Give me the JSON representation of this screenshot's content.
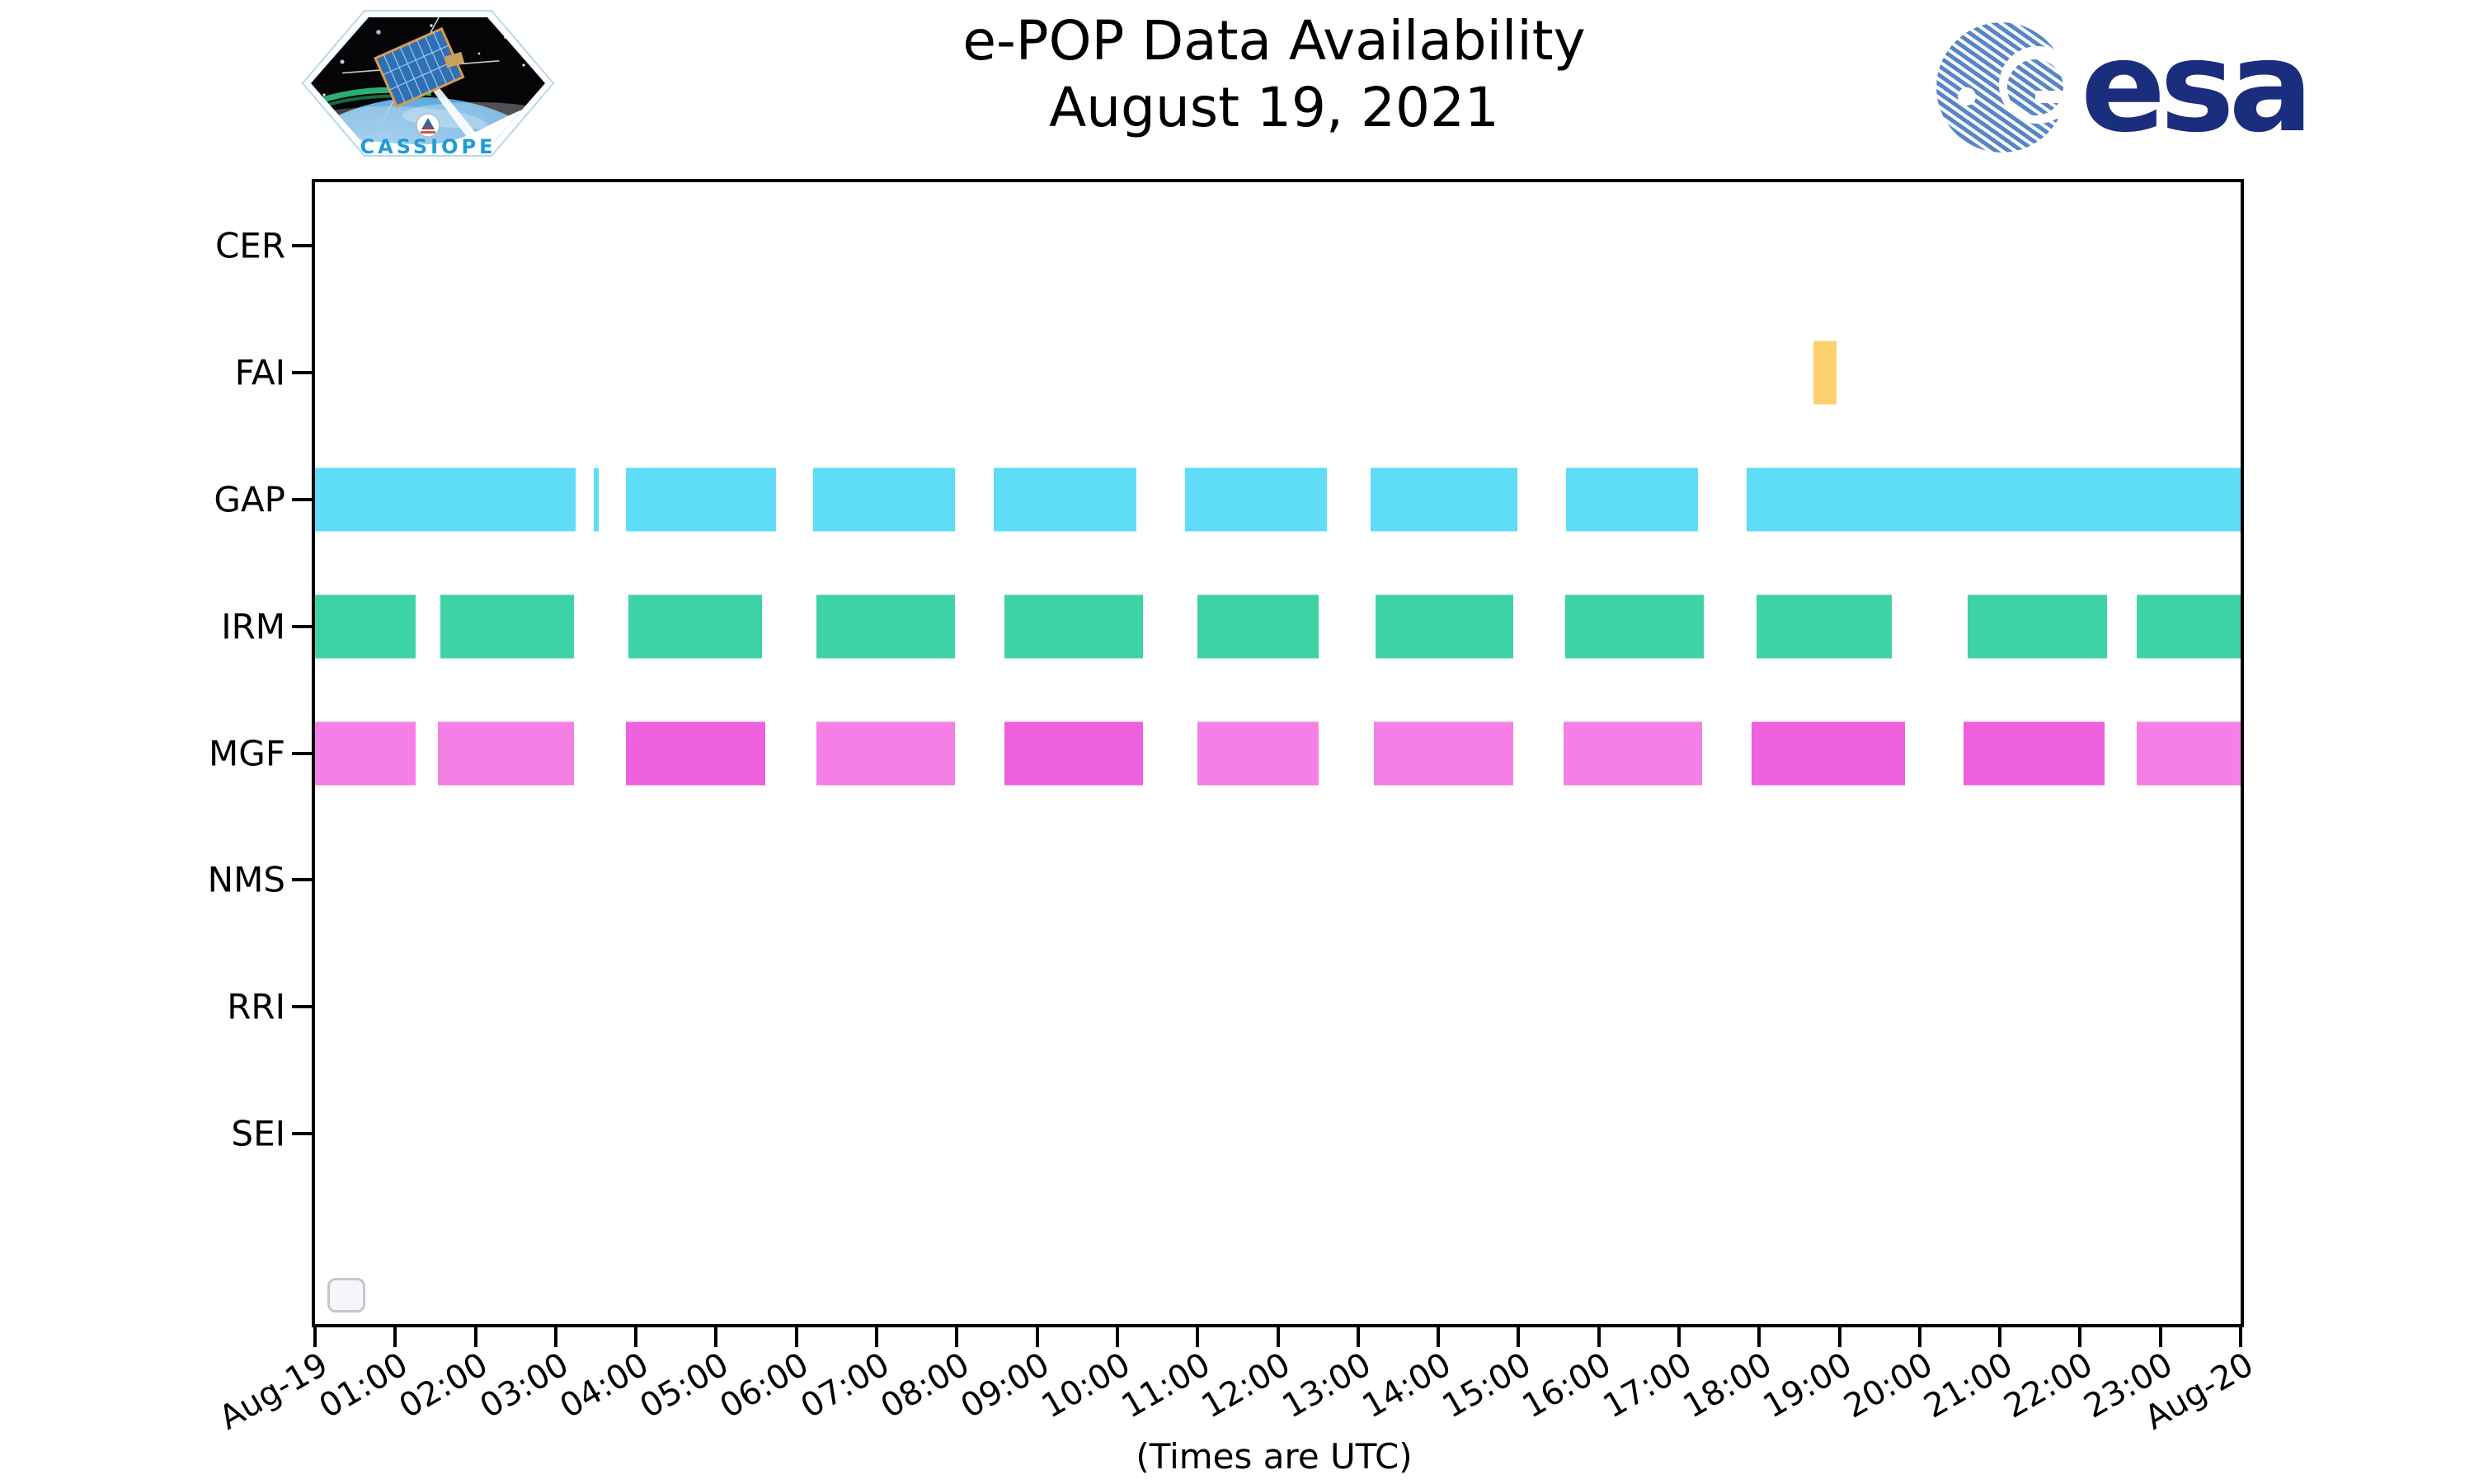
{
  "header": {
    "title_line1": "e-POP Data Availability",
    "title_line2": "August 19, 2021",
    "cassiope_patch_text": "CASSIOPE",
    "esa_wordmark": "esa"
  },
  "footer": {
    "caption": "(Times are UTC)"
  },
  "chart_data": {
    "type": "broken-bar-timeline",
    "title": "e-POP Data Availability",
    "subtitle": "August 19, 2021",
    "xlabel": "(Times are UTC)",
    "x_range_hours": [
      0,
      24
    ],
    "x_tick_labels": [
      "Aug-19",
      "01:00",
      "02:00",
      "03:00",
      "04:00",
      "05:00",
      "06:00",
      "07:00",
      "08:00",
      "09:00",
      "10:00",
      "11:00",
      "12:00",
      "13:00",
      "14:00",
      "15:00",
      "16:00",
      "17:00",
      "18:00",
      "19:00",
      "20:00",
      "21:00",
      "22:00",
      "23:00",
      "Aug-20"
    ],
    "rows": [
      "CER",
      "FAI",
      "GAP",
      "IRM",
      "MGF",
      "NMS",
      "RRI",
      "SEI"
    ],
    "colors": {
      "gap_cyan": "#5edcf8",
      "irm_green": "#3ed3a6",
      "mgf_light": "#f480e6",
      "mgf_dark": "#ee60dd",
      "fai_orange": "#fcd06e"
    },
    "legend": {
      "visible": true,
      "entries": []
    },
    "series": [
      {
        "name": "CER",
        "segments": []
      },
      {
        "name": "FAI",
        "segments": [
          {
            "start": 18.68,
            "end": 18.96,
            "color": "#fcd06e"
          }
        ]
      },
      {
        "name": "GAP",
        "segments": [
          {
            "start": 0.0,
            "end": 3.25,
            "color": "#5edcf8"
          },
          {
            "start": 3.47,
            "end": 3.54,
            "color": "#5edcf8"
          },
          {
            "start": 3.87,
            "end": 5.75,
            "color": "#5edcf8"
          },
          {
            "start": 6.21,
            "end": 7.98,
            "color": "#5edcf8"
          },
          {
            "start": 8.46,
            "end": 10.24,
            "color": "#5edcf8"
          },
          {
            "start": 10.84,
            "end": 12.61,
            "color": "#5edcf8"
          },
          {
            "start": 13.16,
            "end": 14.99,
            "color": "#5edcf8"
          },
          {
            "start": 15.59,
            "end": 17.24,
            "color": "#5edcf8"
          },
          {
            "start": 17.84,
            "end": 24.0,
            "color": "#5edcf8"
          }
        ]
      },
      {
        "name": "IRM",
        "segments": [
          {
            "start": 0.0,
            "end": 1.25,
            "color": "#3ed3a6"
          },
          {
            "start": 1.56,
            "end": 3.23,
            "color": "#3ed3a6"
          },
          {
            "start": 3.91,
            "end": 5.57,
            "color": "#3ed3a6"
          },
          {
            "start": 6.25,
            "end": 7.98,
            "color": "#3ed3a6"
          },
          {
            "start": 8.59,
            "end": 10.32,
            "color": "#3ed3a6"
          },
          {
            "start": 11.0,
            "end": 12.51,
            "color": "#3ed3a6"
          },
          {
            "start": 13.22,
            "end": 14.93,
            "color": "#3ed3a6"
          },
          {
            "start": 15.58,
            "end": 17.31,
            "color": "#3ed3a6"
          },
          {
            "start": 17.97,
            "end": 19.65,
            "color": "#3ed3a6"
          },
          {
            "start": 20.6,
            "end": 22.33,
            "color": "#3ed3a6"
          },
          {
            "start": 22.71,
            "end": 24.0,
            "color": "#3ed3a6"
          }
        ]
      },
      {
        "name": "MGF",
        "segments": [
          {
            "start": 0.0,
            "end": 1.25,
            "color": "#f480e6"
          },
          {
            "start": 1.53,
            "end": 3.23,
            "color": "#f480e6"
          },
          {
            "start": 3.87,
            "end": 5.61,
            "color": "#ee60dd"
          },
          {
            "start": 6.25,
            "end": 7.98,
            "color": "#f480e6"
          },
          {
            "start": 8.59,
            "end": 10.32,
            "color": "#ee60dd"
          },
          {
            "start": 11.0,
            "end": 12.51,
            "color": "#f480e6"
          },
          {
            "start": 13.2,
            "end": 14.93,
            "color": "#f480e6"
          },
          {
            "start": 15.56,
            "end": 17.29,
            "color": "#f480e6"
          },
          {
            "start": 17.9,
            "end": 19.82,
            "color": "#ee60dd"
          },
          {
            "start": 20.55,
            "end": 22.3,
            "color": "#ee60dd"
          },
          {
            "start": 22.71,
            "end": 24.0,
            "color": "#f480e6"
          }
        ]
      },
      {
        "name": "NMS",
        "segments": []
      },
      {
        "name": "RRI",
        "segments": []
      },
      {
        "name": "SEI",
        "segments": []
      }
    ]
  }
}
